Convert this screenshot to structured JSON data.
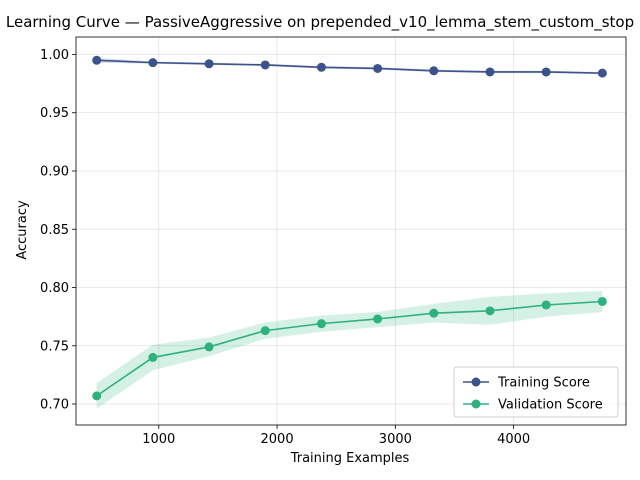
{
  "chart_data": {
    "type": "line",
    "title": "Learning Curve — PassiveAggressive on prepended_v10_lemma_stem_custom_stop",
    "xlabel": "Training Examples",
    "ylabel": "Accuracy",
    "xlim": [
      300,
      4950
    ],
    "ylim": [
      0.682,
      1.015
    ],
    "x_ticks": [
      1000,
      2000,
      3000,
      4000
    ],
    "y_ticks": [
      0.7,
      0.75,
      0.8,
      0.85,
      0.9,
      0.95,
      1.0
    ],
    "x_tick_labels": [
      "1000",
      "2000",
      "3000",
      "4000"
    ],
    "y_tick_labels": [
      "0.70",
      "0.75",
      "0.80",
      "0.85",
      "0.90",
      "0.95",
      "1.00"
    ],
    "grid": true,
    "legend_position": "lower-right",
    "x": [
      475,
      950,
      1425,
      1900,
      2375,
      2850,
      3325,
      3800,
      4275,
      4750
    ],
    "series": [
      {
        "name": "Training Score",
        "color": "#3b528b",
        "marker": "circle",
        "values": [
          0.995,
          0.993,
          0.992,
          0.991,
          0.989,
          0.988,
          0.986,
          0.985,
          0.985,
          0.984
        ],
        "band_lower": [
          0.993,
          0.992,
          0.991,
          0.99,
          0.988,
          0.987,
          0.985,
          0.984,
          0.984,
          0.983
        ],
        "band_upper": [
          0.997,
          0.994,
          0.993,
          0.992,
          0.99,
          0.989,
          0.987,
          0.986,
          0.986,
          0.985
        ]
      },
      {
        "name": "Validation Score",
        "color": "#2db27d",
        "marker": "circle",
        "values": [
          0.707,
          0.74,
          0.749,
          0.763,
          0.769,
          0.773,
          0.778,
          0.78,
          0.785,
          0.788
        ],
        "band_lower": [
          0.696,
          0.729,
          0.741,
          0.756,
          0.762,
          0.766,
          0.77,
          0.768,
          0.775,
          0.779
        ],
        "band_upper": [
          0.718,
          0.751,
          0.757,
          0.77,
          0.776,
          0.779,
          0.786,
          0.792,
          0.795,
          0.797
        ]
      }
    ]
  }
}
